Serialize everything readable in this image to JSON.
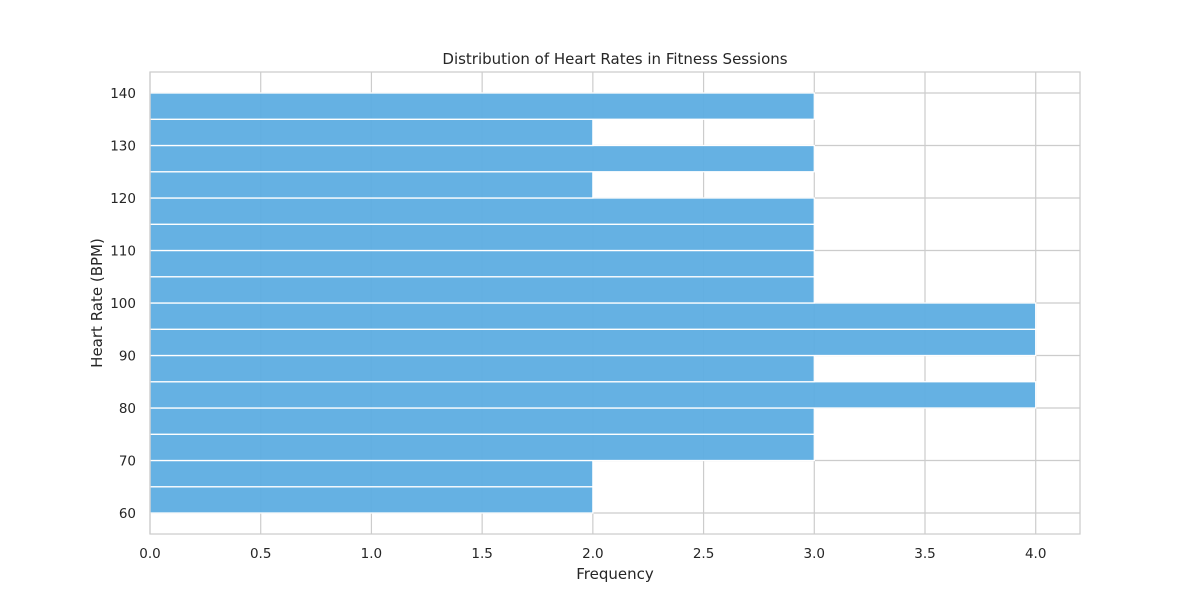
{
  "chart_data": {
    "type": "bar",
    "orientation": "horizontal",
    "title": "Distribution of Heart Rates in Fitness Sessions",
    "xlabel": "Frequency",
    "ylabel": "Heart Rate (BPM)",
    "xlim": [
      0,
      4.2
    ],
    "ylim": [
      56,
      144
    ],
    "xticks": [
      "0.0",
      "0.5",
      "1.0",
      "1.5",
      "2.0",
      "2.5",
      "3.0",
      "3.5",
      "4.0"
    ],
    "xtick_values": [
      0,
      0.5,
      1.0,
      1.5,
      2.0,
      2.5,
      3.0,
      3.5,
      4.0
    ],
    "yticks": [
      "60",
      "70",
      "80",
      "90",
      "100",
      "110",
      "120",
      "130",
      "140"
    ],
    "ytick_values": [
      60,
      70,
      80,
      90,
      100,
      110,
      120,
      130,
      140
    ],
    "bins": [
      {
        "from": 60,
        "to": 65,
        "count": 2
      },
      {
        "from": 65,
        "to": 70,
        "count": 2
      },
      {
        "from": 70,
        "to": 75,
        "count": 3
      },
      {
        "from": 75,
        "to": 80,
        "count": 3
      },
      {
        "from": 80,
        "to": 85,
        "count": 4
      },
      {
        "from": 85,
        "to": 90,
        "count": 3
      },
      {
        "from": 90,
        "to": 95,
        "count": 4
      },
      {
        "from": 95,
        "to": 100,
        "count": 4
      },
      {
        "from": 100,
        "to": 105,
        "count": 3
      },
      {
        "from": 105,
        "to": 110,
        "count": 3
      },
      {
        "from": 110,
        "to": 115,
        "count": 3
      },
      {
        "from": 115,
        "to": 120,
        "count": 3
      },
      {
        "from": 120,
        "to": 125,
        "count": 2
      },
      {
        "from": 125,
        "to": 130,
        "count": 3
      },
      {
        "from": 130,
        "to": 135,
        "count": 2
      },
      {
        "from": 135,
        "to": 140,
        "count": 3
      }
    ],
    "grid": true,
    "bar_color": "#5dade2"
  }
}
